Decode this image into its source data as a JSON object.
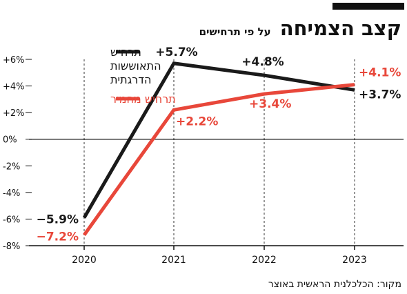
{
  "header": {
    "title": "קצב הצמיחה",
    "subtitle": "על פי תרחישים"
  },
  "source": "מקור: הכלכלנית הראשית באוצר",
  "chart_data": {
    "type": "line",
    "x": [
      "2020",
      "2021",
      "2022",
      "2023"
    ],
    "ylim": [
      -8,
      6
    ],
    "yticks": [
      -8,
      -6,
      -4,
      -2,
      0,
      2,
      4,
      6
    ],
    "ytick_labels": [
      "-8%",
      "-6%",
      "-4%",
      "-2%",
      "0%",
      "+2%",
      "+4%",
      "+6%"
    ],
    "grid": false,
    "legend_position": "top-right",
    "series": [
      {
        "name": "תרחיש התאוששות הדרגתית",
        "name_lines": [
          "תרחיש",
          "התאוששות",
          "הדרגתית"
        ],
        "color": "#1a1a1a",
        "values": [
          -5.9,
          5.7,
          4.8,
          3.7
        ],
        "labels": [
          "−5.9%",
          "+5.7%",
          "+4.8%",
          "+3.7%"
        ]
      },
      {
        "name": "תרחיש מחמיר",
        "name_lines": [
          "תרחיש מחמיר"
        ],
        "color": "#e8473a",
        "values": [
          -7.2,
          2.2,
          3.4,
          4.1
        ],
        "labels": [
          "−7.2%",
          "+2.2%",
          "+3.4%",
          "+4.1%"
        ]
      }
    ]
  }
}
